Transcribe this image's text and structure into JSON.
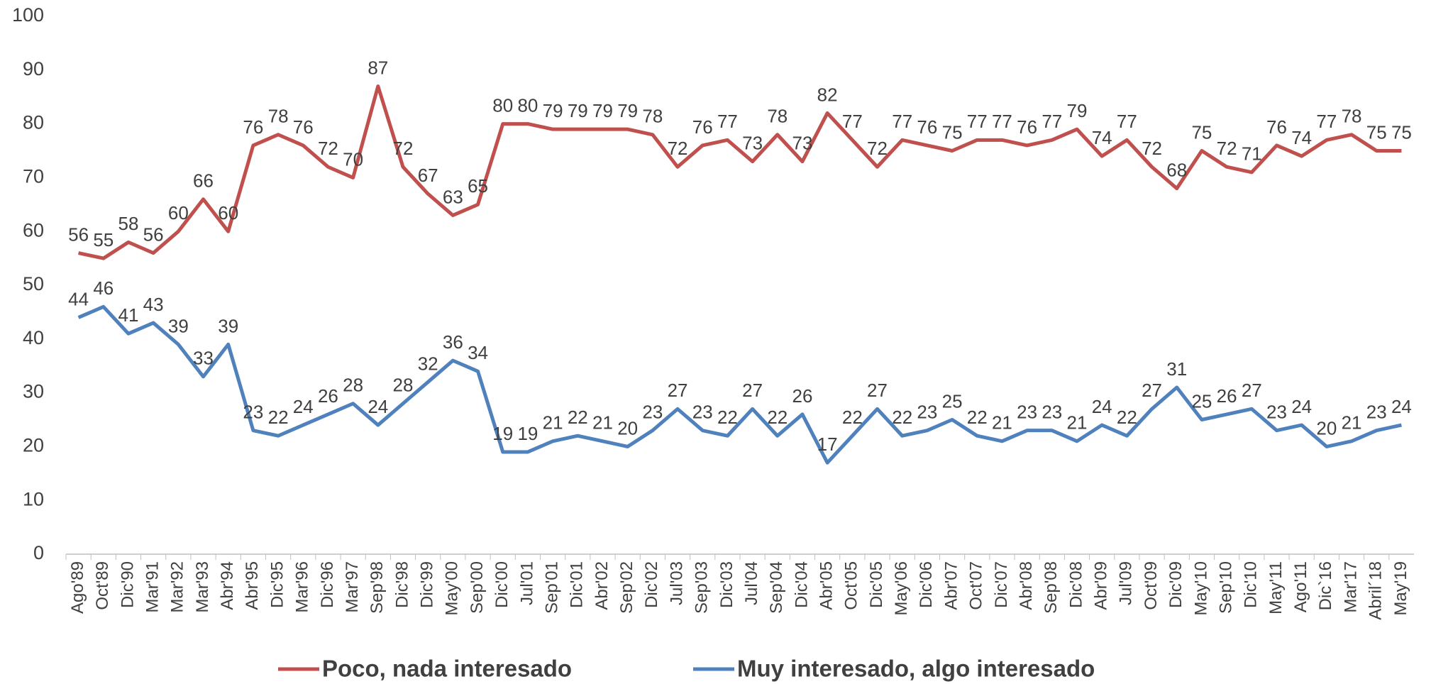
{
  "chart_data": {
    "type": "line",
    "categories": [
      "Ago'89",
      "Oct'89",
      "Dic'90",
      "Mar'91",
      "Mar'92",
      "Mar'93",
      "Abr'94",
      "Abr'95",
      "Dic'95",
      "Mar'96",
      "Dic'96",
      "Mar'97",
      "Sep'98",
      "Dic'98",
      "Dic'99",
      "May'00",
      "Sep'00",
      "Dic'00",
      "Jul'01",
      "Sep'01",
      "Dic'01",
      "Abr'02",
      "Sep'02",
      "Dic'02",
      "Jul'03",
      "Sep'03",
      "Dic'03",
      "Jul'04",
      "Sep'04",
      "Dic'04",
      "Abr'05",
      "Oct'05",
      "Dic'05",
      "May'06",
      "Dic'06",
      "Abr'07",
      "Oct'07",
      "Dic'07",
      "Abr'08",
      "Sep'08",
      "Dic'08",
      "Abr'09",
      "Jul'09",
      "Oct'09",
      "Dic'09",
      "May'10",
      "Sep'10",
      "Dic'10",
      "May'11",
      "Ago'11",
      "Dic`16",
      "Mar'17",
      "Abril´18",
      "May'19"
    ],
    "series": [
      {
        "name": "Poco, nada interesado",
        "color": "#c0504d",
        "values": [
          56,
          55,
          58,
          56,
          60,
          66,
          60,
          76,
          78,
          76,
          72,
          70,
          87,
          72,
          67,
          63,
          65,
          80,
          80,
          79,
          79,
          79,
          79,
          78,
          72,
          76,
          77,
          73,
          78,
          73,
          82,
          77,
          72,
          77,
          76,
          75,
          77,
          77,
          76,
          77,
          79,
          74,
          77,
          72,
          68,
          75,
          72,
          71,
          76,
          74,
          77,
          78,
          75,
          75
        ]
      },
      {
        "name": "Muy interesado, algo interesado",
        "color": "#4f81bd",
        "values": [
          44,
          46,
          41,
          43,
          39,
          33,
          39,
          23,
          22,
          24,
          26,
          28,
          24,
          28,
          32,
          36,
          34,
          19,
          19,
          21,
          22,
          21,
          20,
          23,
          27,
          23,
          22,
          27,
          22,
          26,
          17,
          22,
          27,
          22,
          23,
          25,
          22,
          21,
          23,
          23,
          21,
          24,
          22,
          27,
          31,
          25,
          26,
          27,
          23,
          24,
          20,
          21,
          23,
          24
        ]
      }
    ],
    "ylim": [
      0,
      100
    ],
    "yticks": [
      0,
      10,
      20,
      30,
      40,
      50,
      60,
      70,
      80,
      90,
      100
    ],
    "grid": false,
    "legend": "bottom"
  }
}
